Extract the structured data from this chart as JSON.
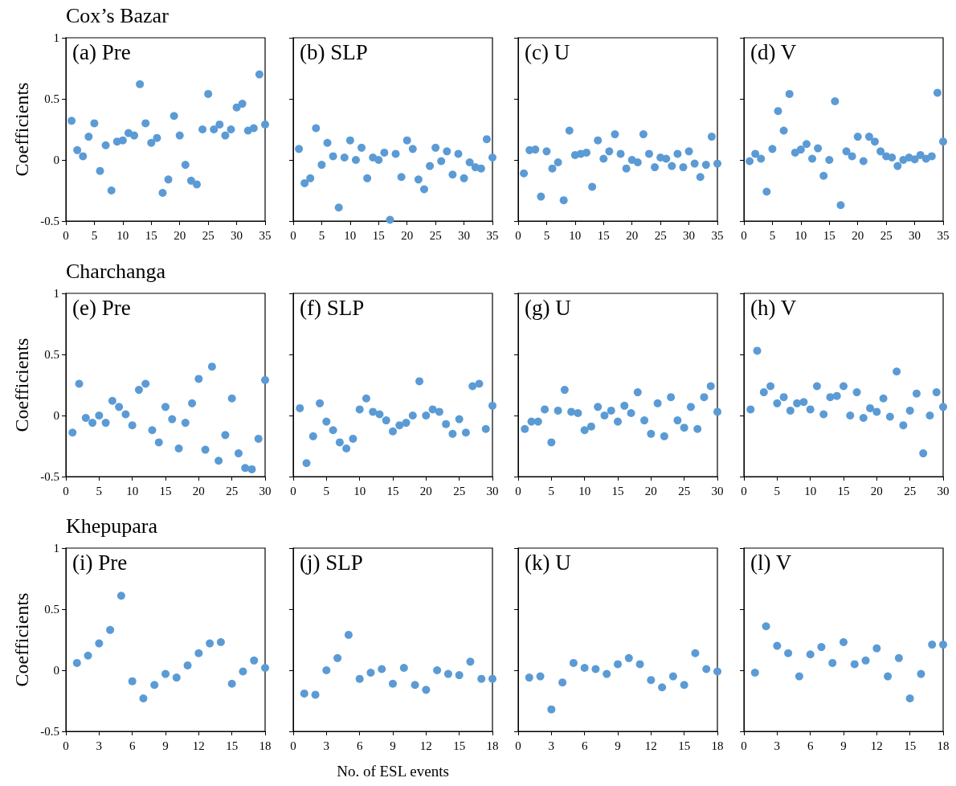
{
  "chart_data": [
    {
      "type": "scatter",
      "title": "(a) Pre",
      "annotations": [
        "Cox’s Bazar"
      ],
      "ylabel": "Coefficients",
      "x": [
        1,
        2,
        3,
        4,
        5,
        6,
        7,
        8,
        9,
        10,
        11,
        12,
        13,
        14,
        15,
        16,
        17,
        18,
        19,
        20,
        21,
        22,
        23,
        24,
        25,
        26,
        27,
        28,
        29,
        30,
        31,
        32,
        33,
        34,
        35
      ],
      "series": [
        {
          "color": "#5b9bd5",
          "values": [
            0.32,
            0.08,
            0.03,
            0.19,
            0.3,
            -0.09,
            0.12,
            -0.25,
            0.15,
            0.16,
            0.22,
            0.2,
            0.62,
            0.3,
            0.14,
            0.18,
            -0.27,
            -0.16,
            0.36,
            0.2,
            -0.04,
            -0.17,
            -0.2,
            0.25,
            0.54,
            0.25,
            0.29,
            0.2,
            0.25,
            0.43,
            0.46,
            0.24,
            0.26,
            0.7,
            0.29
          ]
        }
      ],
      "xlim": [
        0,
        35
      ],
      "xticks": [
        0,
        5,
        10,
        15,
        20,
        25,
        30,
        35
      ],
      "ylim": [
        -0.5,
        1
      ],
      "yticks": [
        -0.5,
        0,
        0.5,
        1
      ],
      "marker": "circle",
      "grid": false
    },
    {
      "type": "scatter",
      "title": "(b) SLP",
      "tick_labels": "x",
      "x": [
        1,
        2,
        3,
        4,
        5,
        6,
        7,
        8,
        9,
        10,
        11,
        12,
        13,
        14,
        15,
        16,
        17,
        18,
        19,
        20,
        21,
        22,
        23,
        24,
        25,
        26,
        27,
        28,
        29,
        30,
        31,
        32,
        33,
        34,
        35
      ],
      "series": [
        {
          "color": "#5b9bd5",
          "values": [
            0.09,
            -0.19,
            -0.15,
            0.26,
            -0.04,
            0.14,
            0.03,
            -0.39,
            0.02,
            0.16,
            0.0,
            0.1,
            -0.15,
            0.02,
            0.0,
            0.06,
            -0.49,
            0.05,
            -0.14,
            0.16,
            0.09,
            -0.16,
            -0.24,
            -0.05,
            0.1,
            -0.01,
            0.07,
            -0.12,
            0.05,
            -0.15,
            -0.02,
            -0.06,
            -0.07,
            0.17,
            0.02
          ]
        }
      ],
      "xlim": [
        0,
        35
      ],
      "xticks": [
        0,
        5,
        10,
        15,
        20,
        25,
        30,
        35
      ],
      "ylim": [
        -0.5,
        1
      ],
      "yticks": [
        -0.5,
        0,
        0.5,
        1
      ],
      "marker": "circle",
      "grid": false
    },
    {
      "type": "scatter",
      "title": "(c) U",
      "tick_labels": "x",
      "x": [
        1,
        2,
        3,
        4,
        5,
        6,
        7,
        8,
        9,
        10,
        11,
        12,
        13,
        14,
        15,
        16,
        17,
        18,
        19,
        20,
        21,
        22,
        23,
        24,
        25,
        26,
        27,
        28,
        29,
        30,
        31,
        32,
        33,
        34,
        35
      ],
      "series": [
        {
          "color": "#5b9bd5",
          "values": [
            -0.11,
            0.08,
            0.085,
            -0.3,
            0.07,
            -0.07,
            -0.02,
            -0.33,
            0.24,
            0.04,
            0.05,
            0.06,
            -0.22,
            0.16,
            0.01,
            0.07,
            0.21,
            0.05,
            -0.07,
            0.0,
            -0.02,
            0.21,
            0.05,
            -0.06,
            0.02,
            0.01,
            -0.05,
            0.05,
            -0.06,
            0.07,
            -0.03,
            -0.14,
            -0.04,
            0.19,
            -0.03
          ]
        }
      ],
      "xlim": [
        0,
        35
      ],
      "xticks": [
        0,
        5,
        10,
        15,
        20,
        25,
        30,
        35
      ],
      "ylim": [
        -0.5,
        1
      ],
      "yticks": [
        -0.5,
        0,
        0.5,
        1
      ],
      "marker": "circle",
      "grid": false
    },
    {
      "type": "scatter",
      "title": "(d) V",
      "tick_labels": "x",
      "x": [
        1,
        2,
        3,
        4,
        5,
        6,
        7,
        8,
        9,
        10,
        11,
        12,
        13,
        14,
        15,
        16,
        17,
        18,
        19,
        20,
        21,
        22,
        23,
        24,
        25,
        26,
        27,
        28,
        29,
        30,
        31,
        32,
        33,
        34,
        35
      ],
      "series": [
        {
          "color": "#5b9bd5",
          "values": [
            -0.01,
            0.05,
            0.01,
            -0.26,
            0.09,
            0.4,
            0.24,
            0.54,
            0.06,
            0.085,
            0.13,
            0.01,
            0.095,
            -0.13,
            0.0,
            0.48,
            -0.37,
            0.07,
            0.03,
            0.19,
            -0.01,
            0.19,
            0.15,
            0.07,
            0.03,
            0.02,
            -0.05,
            0.0,
            0.02,
            0.005,
            0.04,
            0.01,
            0.03,
            0.55,
            0.15
          ]
        }
      ],
      "xlim": [
        0,
        35
      ],
      "xticks": [
        0,
        5,
        10,
        15,
        20,
        25,
        30,
        35
      ],
      "ylim": [
        -0.5,
        1
      ],
      "yticks": [
        -0.5,
        0,
        0.5,
        1
      ],
      "marker": "circle",
      "grid": false
    },
    {
      "type": "scatter",
      "title": "(e) Pre",
      "annotations": [
        "Charchanga"
      ],
      "ylabel": "Coefficients",
      "x": [
        1,
        2,
        3,
        4,
        5,
        6,
        7,
        8,
        9,
        10,
        11,
        12,
        13,
        14,
        15,
        16,
        17,
        18,
        19,
        20,
        21,
        22,
        23,
        24,
        25,
        26,
        27,
        28,
        29,
        30
      ],
      "series": [
        {
          "color": "#5b9bd5",
          "values": [
            -0.14,
            0.26,
            -0.02,
            -0.06,
            0.0,
            -0.06,
            0.12,
            0.07,
            0.01,
            -0.08,
            0.21,
            0.26,
            -0.12,
            -0.22,
            0.07,
            -0.03,
            -0.27,
            -0.06,
            0.1,
            0.3,
            -0.28,
            0.4,
            -0.37,
            -0.16,
            0.14,
            -0.31,
            -0.43,
            -0.44,
            -0.19,
            0.29
          ]
        }
      ],
      "xlim": [
        0,
        30
      ],
      "xticks": [
        0,
        5,
        10,
        15,
        20,
        25,
        30
      ],
      "ylim": [
        -0.5,
        1
      ],
      "yticks": [
        -0.5,
        0,
        0.5,
        1
      ],
      "marker": "circle",
      "grid": false
    },
    {
      "type": "scatter",
      "title": "(f) SLP",
      "tick_labels": "x",
      "x": [
        1,
        2,
        3,
        4,
        5,
        6,
        7,
        8,
        9,
        10,
        11,
        12,
        13,
        14,
        15,
        16,
        17,
        18,
        19,
        20,
        21,
        22,
        23,
        24,
        25,
        26,
        27,
        28,
        29,
        30
      ],
      "series": [
        {
          "color": "#5b9bd5",
          "values": [
            0.06,
            -0.39,
            -0.17,
            0.1,
            -0.05,
            -0.12,
            -0.22,
            -0.27,
            -0.19,
            0.05,
            0.14,
            0.03,
            0.01,
            -0.04,
            -0.13,
            -0.08,
            -0.06,
            0.0,
            0.28,
            0.0,
            0.05,
            0.03,
            -0.07,
            -0.15,
            -0.03,
            -0.14,
            0.24,
            0.26,
            -0.11,
            0.08
          ]
        }
      ],
      "xlim": [
        0,
        30
      ],
      "xticks": [
        0,
        5,
        10,
        15,
        20,
        25,
        30
      ],
      "ylim": [
        -0.5,
        1
      ],
      "yticks": [
        -0.5,
        0,
        0.5,
        1
      ],
      "marker": "circle",
      "grid": false
    },
    {
      "type": "scatter",
      "title": "(g) U",
      "tick_labels": "x",
      "x": [
        1,
        2,
        3,
        4,
        5,
        6,
        7,
        8,
        9,
        10,
        11,
        12,
        13,
        14,
        15,
        16,
        17,
        18,
        19,
        20,
        21,
        22,
        23,
        24,
        25,
        26,
        27,
        28,
        29,
        30
      ],
      "series": [
        {
          "color": "#5b9bd5",
          "values": [
            -0.11,
            -0.05,
            -0.05,
            0.05,
            -0.22,
            0.04,
            0.21,
            0.03,
            0.02,
            -0.12,
            -0.09,
            0.07,
            0.0,
            0.04,
            -0.05,
            0.08,
            0.02,
            0.19,
            -0.04,
            -0.15,
            0.1,
            -0.17,
            0.15,
            -0.04,
            -0.1,
            0.07,
            -0.11,
            0.15,
            0.24,
            0.03
          ]
        }
      ],
      "xlim": [
        0,
        30
      ],
      "xticks": [
        0,
        5,
        10,
        15,
        20,
        25,
        30
      ],
      "ylim": [
        -0.5,
        1
      ],
      "yticks": [
        -0.5,
        0,
        0.5,
        1
      ],
      "marker": "circle",
      "grid": false
    },
    {
      "type": "scatter",
      "title": "(h) V",
      "tick_labels": "x",
      "x": [
        1,
        2,
        3,
        4,
        5,
        6,
        7,
        8,
        9,
        10,
        11,
        12,
        13,
        14,
        15,
        16,
        17,
        18,
        19,
        20,
        21,
        22,
        23,
        24,
        25,
        26,
        27,
        28,
        29,
        30
      ],
      "series": [
        {
          "color": "#5b9bd5",
          "values": [
            0.05,
            0.53,
            0.19,
            0.24,
            0.1,
            0.15,
            0.04,
            0.1,
            0.11,
            0.05,
            0.24,
            0.01,
            0.15,
            0.16,
            0.24,
            0.0,
            0.19,
            -0.02,
            0.06,
            0.03,
            0.14,
            -0.01,
            0.36,
            -0.08,
            0.04,
            0.18,
            -0.31,
            0.0,
            0.19,
            0.07
          ]
        }
      ],
      "xlim": [
        0,
        30
      ],
      "xticks": [
        0,
        5,
        10,
        15,
        20,
        25,
        30
      ],
      "ylim": [
        -0.5,
        1
      ],
      "yticks": [
        -0.5,
        0,
        0.5,
        1
      ],
      "marker": "circle",
      "grid": false
    },
    {
      "type": "scatter",
      "title": "(i) Pre",
      "annotations": [
        "Khepupara"
      ],
      "ylabel": "Coefficients",
      "x": [
        1,
        2,
        3,
        4,
        5,
        6,
        7,
        8,
        9,
        10,
        11,
        12,
        13,
        14,
        15,
        16,
        17,
        18
      ],
      "series": [
        {
          "color": "#5b9bd5",
          "values": [
            0.06,
            0.12,
            0.22,
            0.33,
            0.61,
            -0.09,
            -0.23,
            -0.12,
            -0.03,
            -0.06,
            0.04,
            0.14,
            0.22,
            0.23,
            -0.11,
            -0.01,
            0.08,
            0.02
          ]
        }
      ],
      "xlim": [
        0,
        18
      ],
      "xticks": [
        0,
        3,
        6,
        9,
        12,
        15,
        18
      ],
      "ylim": [
        -0.5,
        1
      ],
      "yticks": [
        -0.5,
        0,
        0.5,
        1
      ],
      "marker": "circle",
      "grid": false
    },
    {
      "type": "scatter",
      "title": "(j) SLP",
      "xlabel": "No. of ESL events",
      "tick_labels": "x",
      "x": [
        1,
        2,
        3,
        4,
        5,
        6,
        7,
        8,
        9,
        10,
        11,
        12,
        13,
        14,
        15,
        16,
        17,
        18
      ],
      "series": [
        {
          "color": "#5b9bd5",
          "values": [
            -0.19,
            -0.2,
            0.0,
            0.1,
            0.29,
            -0.07,
            -0.02,
            0.01,
            -0.11,
            0.02,
            -0.12,
            -0.16,
            0.0,
            -0.03,
            -0.04,
            0.07,
            -0.07,
            -0.07
          ]
        }
      ],
      "xlim": [
        0,
        18
      ],
      "xticks": [
        0,
        3,
        6,
        9,
        12,
        15,
        18
      ],
      "ylim": [
        -0.5,
        1
      ],
      "yticks": [
        -0.5,
        0,
        0.5,
        1
      ],
      "marker": "circle",
      "grid": false
    },
    {
      "type": "scatter",
      "title": "(k) U",
      "tick_labels": "x",
      "x": [
        1,
        2,
        3,
        4,
        5,
        6,
        7,
        8,
        9,
        10,
        11,
        12,
        13,
        14,
        15,
        16,
        17,
        18
      ],
      "series": [
        {
          "color": "#5b9bd5",
          "values": [
            -0.06,
            -0.05,
            -0.32,
            -0.1,
            0.06,
            0.02,
            0.01,
            -0.03,
            0.05,
            0.1,
            0.05,
            -0.08,
            -0.14,
            -0.05,
            -0.12,
            0.14,
            0.01,
            -0.01
          ]
        }
      ],
      "xlim": [
        0,
        18
      ],
      "xticks": [
        0,
        3,
        6,
        9,
        12,
        15,
        18
      ],
      "ylim": [
        -0.5,
        1
      ],
      "yticks": [
        -0.5,
        0,
        0.5,
        1
      ],
      "marker": "circle",
      "grid": false
    },
    {
      "type": "scatter",
      "title": "(l) V",
      "tick_labels": "x",
      "x": [
        1,
        2,
        3,
        4,
        5,
        6,
        7,
        8,
        9,
        10,
        11,
        12,
        13,
        14,
        15,
        16,
        17,
        18
      ],
      "series": [
        {
          "color": "#5b9bd5",
          "values": [
            -0.02,
            0.36,
            0.2,
            0.14,
            -0.05,
            0.13,
            0.19,
            0.06,
            0.23,
            0.05,
            0.08,
            0.18,
            -0.05,
            0.1,
            -0.23,
            -0.03,
            0.21,
            0.21
          ]
        }
      ],
      "xlim": [
        0,
        18
      ],
      "xticks": [
        0,
        3,
        6,
        9,
        12,
        15,
        18
      ],
      "ylim": [
        -0.5,
        1
      ],
      "yticks": [
        -0.5,
        0,
        0.5,
        1
      ],
      "marker": "circle",
      "grid": false
    }
  ]
}
